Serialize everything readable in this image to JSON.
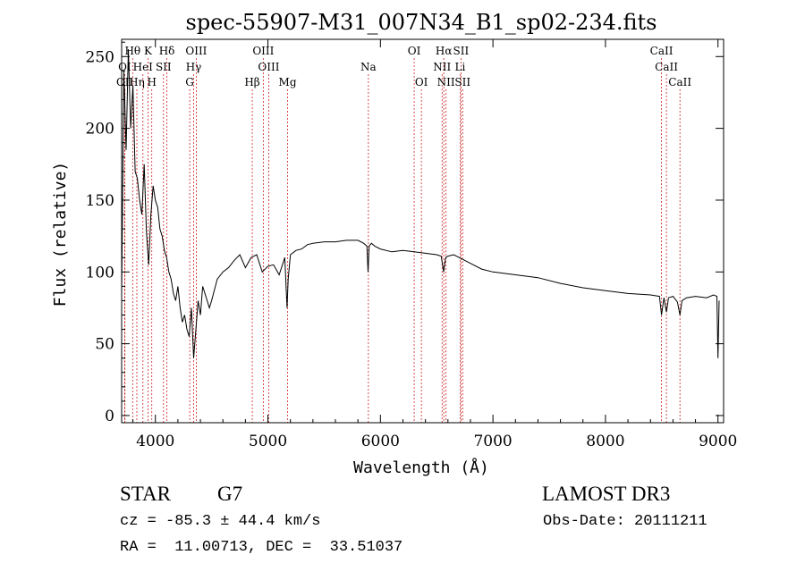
{
  "colors": {
    "line_marker": "#cc2222",
    "spectrum": "#000000",
    "axes": "#000000"
  },
  "chart_data": {
    "type": "line",
    "title": "spec-55907-M31_007N34_B1_sp02-234.fits",
    "xlabel": "Wavelength (Å)",
    "ylabel": "Flux (relative)",
    "xlim": [
      3700,
      9050
    ],
    "ylim": [
      -5,
      262
    ],
    "xticks": [
      4000,
      5000,
      6000,
      7000,
      8000,
      9000
    ],
    "yticks": [
      0,
      50,
      100,
      150,
      200,
      250
    ],
    "spectrum": {
      "x": [
        3700,
        3720,
        3740,
        3760,
        3780,
        3800,
        3820,
        3840,
        3860,
        3880,
        3900,
        3920,
        3940,
        3960,
        3980,
        4000,
        4020,
        4040,
        4060,
        4080,
        4100,
        4120,
        4140,
        4160,
        4180,
        4200,
        4220,
        4240,
        4260,
        4280,
        4300,
        4320,
        4340,
        4360,
        4380,
        4400,
        4420,
        4440,
        4460,
        4480,
        4500,
        4550,
        4600,
        4650,
        4700,
        4750,
        4800,
        4850,
        4900,
        4950,
        5000,
        5050,
        5100,
        5150,
        5170,
        5180,
        5200,
        5250,
        5300,
        5350,
        5400,
        5500,
        5600,
        5700,
        5800,
        5850,
        5880,
        5890,
        5900,
        5920,
        5950,
        6000,
        6100,
        6200,
        6300,
        6400,
        6500,
        6540,
        6562,
        6580,
        6600,
        6650,
        6700,
        6800,
        6900,
        7000,
        7200,
        7400,
        7600,
        7800,
        8000,
        8200,
        8400,
        8480,
        8498,
        8520,
        8542,
        8560,
        8600,
        8640,
        8662,
        8680,
        8720,
        8800,
        8900,
        8960,
        8990,
        9000,
        9010
      ],
      "y": [
        85,
        240,
        185,
        255,
        200,
        230,
        170,
        165,
        150,
        140,
        175,
        128,
        105,
        140,
        160,
        150,
        145,
        130,
        125,
        115,
        110,
        100,
        95,
        85,
        80,
        90,
        75,
        65,
        70,
        60,
        55,
        75,
        40,
        60,
        80,
        70,
        90,
        85,
        80,
        75,
        80,
        95,
        100,
        103,
        108,
        112,
        103,
        110,
        112,
        100,
        104,
        105,
        98,
        110,
        75,
        95,
        112,
        115,
        116,
        119,
        120,
        121,
        121,
        122,
        122,
        120,
        118,
        100,
        118,
        120,
        118,
        116,
        114,
        115,
        114,
        113,
        112,
        111,
        100,
        110,
        111,
        112,
        110,
        106,
        102,
        100,
        98,
        96,
        92,
        89,
        87,
        85,
        84,
        83,
        70,
        82,
        72,
        82,
        83,
        79,
        70,
        80,
        82,
        83,
        82,
        84,
        83,
        40,
        80
      ]
    },
    "lines": [
      {
        "label": "Hθ",
        "x": 3798,
        "row": 0
      },
      {
        "label": "K",
        "x": 3934,
        "row": 0
      },
      {
        "label": "Hδ",
        "x": 4102,
        "row": 0
      },
      {
        "label": "OIII",
        "x": 4363,
        "row": 0
      },
      {
        "label": "OIII",
        "x": 4959,
        "row": 0
      },
      {
        "label": "OI",
        "x": 6300,
        "row": 0
      },
      {
        "label": "Hα",
        "x": 6563,
        "row": 0
      },
      {
        "label": "SII",
        "x": 6716,
        "row": 0
      },
      {
        "label": "CaII",
        "x": 8498,
        "row": 0
      },
      {
        "label": "OI",
        "x": 3727,
        "row": 1
      },
      {
        "label": "HeI",
        "x": 3889,
        "row": 1
      },
      {
        "label": "SII",
        "x": 4072,
        "row": 1
      },
      {
        "label": "Hγ",
        "x": 4340,
        "row": 1
      },
      {
        "label": "OIII",
        "x": 5007,
        "row": 1
      },
      {
        "label": "Na",
        "x": 5893,
        "row": 1
      },
      {
        "label": "NII",
        "x": 6548,
        "row": 1
      },
      {
        "label": "Li",
        "x": 6708,
        "row": 1
      },
      {
        "label": "CaII",
        "x": 8542,
        "row": 1
      },
      {
        "label": "OII",
        "x": 3729,
        "row": 2
      },
      {
        "label": "Hη",
        "x": 3835,
        "row": 2
      },
      {
        "label": "H",
        "x": 3968,
        "row": 2
      },
      {
        "label": "G",
        "x": 4305,
        "row": 2
      },
      {
        "label": "Hβ",
        "x": 4861,
        "row": 2
      },
      {
        "label": "Mg",
        "x": 5175,
        "row": 2
      },
      {
        "label": "OI",
        "x": 6364,
        "row": 2
      },
      {
        "label": "NII",
        "x": 6583,
        "row": 2
      },
      {
        "label": "SII",
        "x": 6731,
        "row": 2
      },
      {
        "label": "CaII",
        "x": 8662,
        "row": 2
      }
    ]
  },
  "info": {
    "class_label": "STAR",
    "subclass": "G7",
    "survey": "LAMOST DR3",
    "redshift": "cz = -85.3 ± 44.4 km/s",
    "obs_date": "Obs-Date: 20111211",
    "coords": "RA =  11.00713, DEC =  33.51037"
  }
}
